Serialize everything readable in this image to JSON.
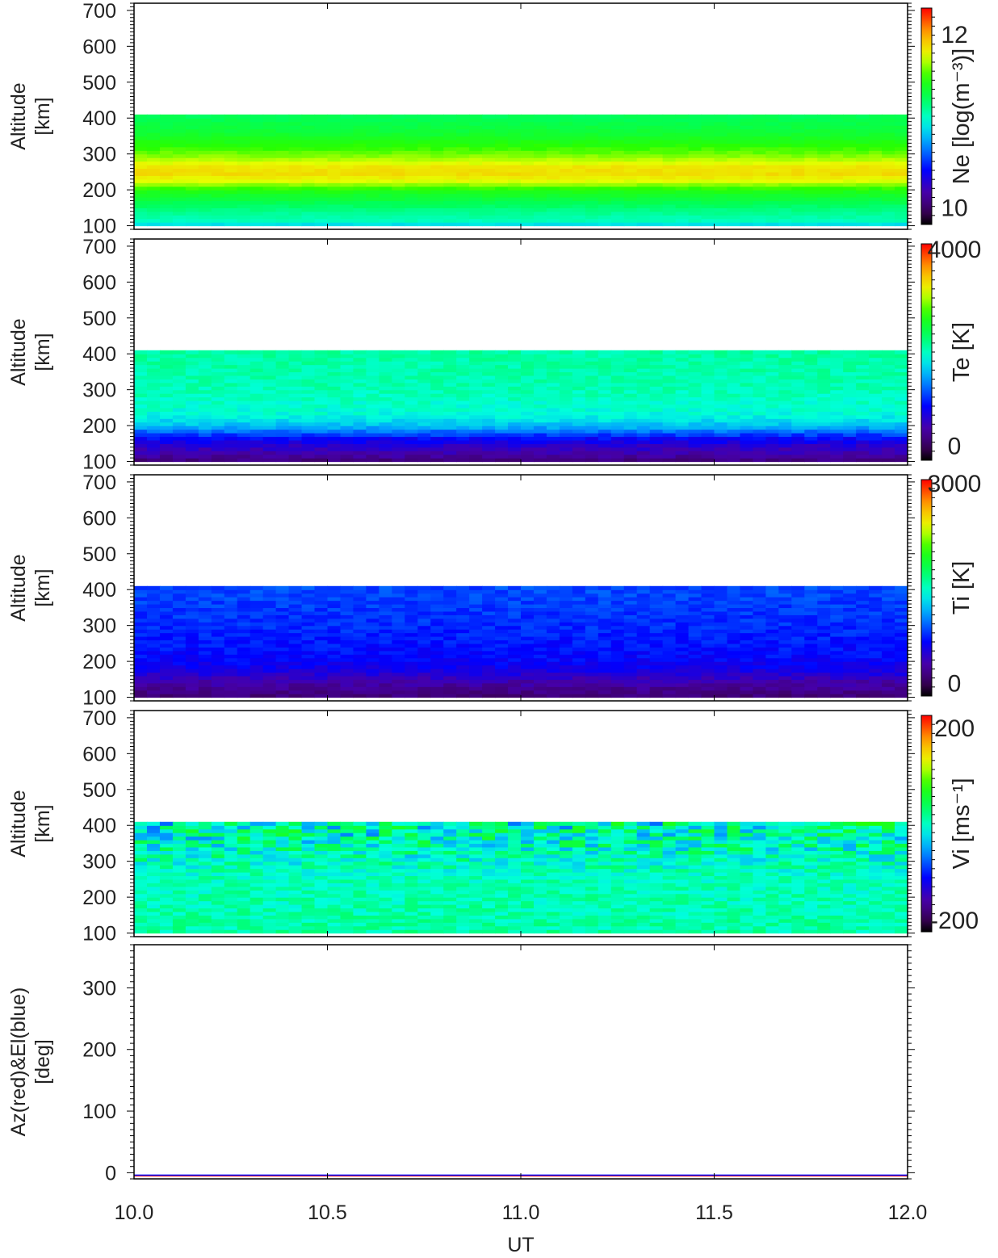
{
  "chart_data": {
    "type": "heatmap",
    "x_axis": {
      "label": "UT",
      "ticks": [
        10.0,
        10.5,
        11.0,
        11.5,
        12.0
      ],
      "tick_labels": [
        "10.0",
        "10.5",
        "11.0",
        "11.5",
        "12.0"
      ],
      "range": [
        10.0,
        12.0
      ]
    },
    "panels": [
      {
        "id": "ne",
        "type": "heatmap",
        "ylabel": [
          "Altitude",
          "[km]"
        ],
        "ylim": [
          90,
          720
        ],
        "yticks": [
          100,
          200,
          300,
          400,
          500,
          600,
          700
        ],
        "ytick_labels": [
          "100",
          "200",
          "300",
          "400",
          "500",
          "600",
          "700"
        ],
        "data_altitude_range": [
          100,
          410
        ],
        "colorbar": {
          "title": "Ne [log(m⁻³)]",
          "range": [
            9.8,
            12.3
          ],
          "tick_labels": [
            "12",
            "10"
          ],
          "tick_values": [
            12,
            10
          ]
        },
        "profile": [
          [
            100,
            10.8
          ],
          [
            110,
            11.05
          ],
          [
            140,
            11.15
          ],
          [
            170,
            11.3
          ],
          [
            200,
            11.45
          ],
          [
            225,
            11.75
          ],
          [
            245,
            11.85
          ],
          [
            265,
            11.82
          ],
          [
            290,
            11.65
          ],
          [
            320,
            11.5
          ],
          [
            360,
            11.35
          ],
          [
            410,
            11.25
          ]
        ],
        "noise": 0.03
      },
      {
        "id": "te",
        "type": "heatmap",
        "ylabel": [
          "Altitude",
          "[km]"
        ],
        "ylim": [
          90,
          720
        ],
        "yticks": [
          100,
          200,
          300,
          400,
          500,
          600,
          700
        ],
        "ytick_labels": [
          "100",
          "200",
          "300",
          "400",
          "500",
          "600",
          "700"
        ],
        "data_altitude_range": [
          100,
          410
        ],
        "colorbar": {
          "title": "Te [K]",
          "range": [
            -300,
            4100
          ],
          "tick_labels": [
            "4000",
            "0"
          ],
          "tick_values": [
            4000,
            0
          ]
        },
        "profile": [
          [
            100,
            100
          ],
          [
            120,
            350
          ],
          [
            145,
            550
          ],
          [
            165,
            800
          ],
          [
            185,
            1200
          ],
          [
            200,
            1500
          ],
          [
            230,
            1800
          ],
          [
            300,
            1950
          ],
          [
            400,
            2000
          ],
          [
            410,
            2000
          ]
        ],
        "noise": 120
      },
      {
        "id": "ti",
        "type": "heatmap",
        "ylabel": [
          "Altitude",
          "[km]"
        ],
        "ylim": [
          90,
          720
        ],
        "yticks": [
          100,
          200,
          300,
          400,
          500,
          600,
          700
        ],
        "ytick_labels": [
          "100",
          "200",
          "300",
          "400",
          "500",
          "600",
          "700"
        ],
        "data_altitude_range": [
          100,
          410
        ],
        "colorbar": {
          "title": "Ti [K]",
          "range": [
            -200,
            3050
          ],
          "tick_labels": [
            "3000",
            "0"
          ],
          "tick_values": [
            3000,
            0
          ]
        },
        "profile": [
          [
            100,
            80
          ],
          [
            120,
            180
          ],
          [
            145,
            300
          ],
          [
            165,
            450
          ],
          [
            185,
            550
          ],
          [
            210,
            620
          ],
          [
            300,
            720
          ],
          [
            400,
            800
          ],
          [
            410,
            800
          ]
        ],
        "noise": 90
      },
      {
        "id": "vi",
        "type": "heatmap",
        "ylabel": [
          "Altitude",
          "[km]"
        ],
        "ylim": [
          90,
          720
        ],
        "yticks": [
          100,
          200,
          300,
          400,
          500,
          600,
          700
        ],
        "ytick_labels": [
          "100",
          "200",
          "300",
          "400",
          "500",
          "600",
          "700"
        ],
        "data_altitude_range": [
          100,
          410
        ],
        "colorbar": {
          "title": "Vi [ms⁻¹]",
          "range": [
            -225,
            225
          ],
          "tick_labels": [
            "200",
            "-200"
          ],
          "tick_values": [
            200,
            -200
          ]
        },
        "profile": [
          [
            100,
            10
          ],
          [
            200,
            5
          ],
          [
            300,
            0
          ],
          [
            400,
            0
          ],
          [
            410,
            0
          ]
        ],
        "noise": 20,
        "noise_growth_with_altitude": 3
      },
      {
        "id": "azel",
        "type": "line",
        "ylabel": [
          "Az(red)&El(blue)",
          "[deg]"
        ],
        "ylim": [
          -10,
          370
        ],
        "yticks": [
          0,
          100,
          200,
          300
        ],
        "ytick_labels": [
          "0",
          "100",
          "200",
          "300"
        ],
        "series": [
          {
            "name": "Az",
            "color": "#ff0000",
            "values": [
              [
                10.0,
                -5
              ],
              [
                12.0,
                -5
              ]
            ]
          },
          {
            "name": "El",
            "color": "#0000ff",
            "values": [
              [
                10.0,
                -4
              ],
              [
                12.0,
                -4
              ]
            ]
          }
        ]
      }
    ]
  }
}
